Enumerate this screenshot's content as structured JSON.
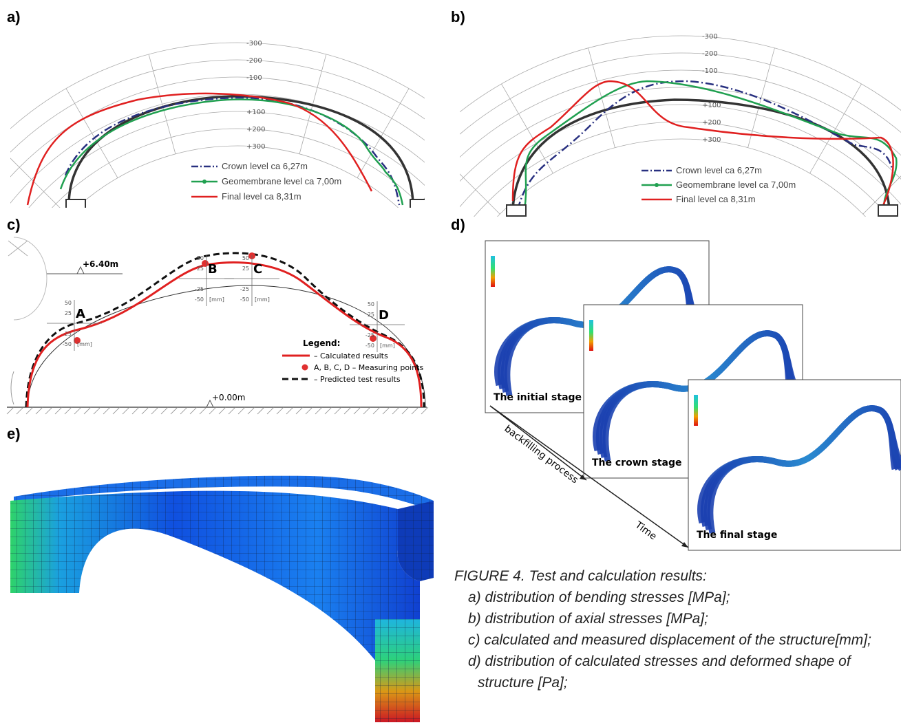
{
  "panels": {
    "a": {
      "label": "a)",
      "ticks": [
        "-300",
        "-200",
        "-100",
        "+100",
        "+200",
        "+300"
      ],
      "legend": [
        "Crown level ca 6,27m",
        "Geomembrane level ca 7,00m",
        "Final level ca 8,31m"
      ]
    },
    "b": {
      "label": "b)",
      "ticks": [
        "-300",
        "-200",
        "-100",
        "+100",
        "+200",
        "+300"
      ],
      "legend": [
        "Crown level ca 6,27m",
        "Geomembrane level ca 7,00m",
        "Final level ca 8,31m"
      ]
    },
    "c": {
      "label": "c)",
      "levels": [
        "+6.40m",
        "+0.00m"
      ],
      "points": [
        "A",
        "B",
        "C",
        "D"
      ],
      "scale": [
        "50",
        "25",
        "-25",
        "-50"
      ],
      "unit": "[mm]",
      "legend_title": "Legend:",
      "legend": [
        "– Calculated results",
        "A, B, C, D – Measuring points",
        "– Predicted test results"
      ]
    },
    "d": {
      "label": "d)",
      "stages": [
        "The initial stage",
        "The crown stage",
        "The final stage"
      ],
      "axes": [
        "backfilling process",
        "Time"
      ]
    },
    "e": {
      "label": "e)"
    }
  },
  "caption": {
    "title": "FIGURE 4. Test and calculation results:",
    "items": [
      "a) distribution of bending stresses [MPa];",
      "b) distribution of axial stresses [MPa];",
      "c) calculated and measured displacement of the structure[mm];",
      "d) distribution of calculated stresses and deformed shape of structure [Pa];"
    ]
  }
}
